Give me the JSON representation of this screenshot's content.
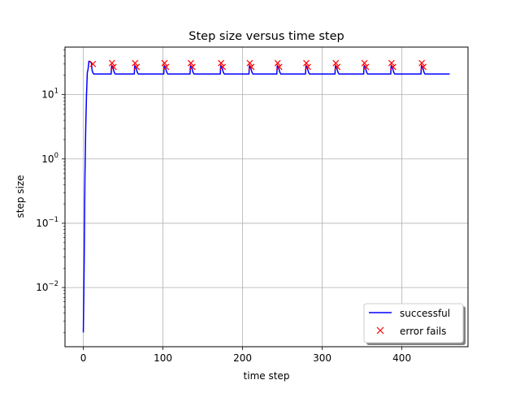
{
  "chart_data": {
    "type": "line",
    "title": "Step size versus time step",
    "xlabel": "time step",
    "ylabel": "step size",
    "xlim": [
      -23,
      483
    ],
    "ylim": [
      0.0012,
      55
    ],
    "yscale": "log",
    "grid": true,
    "legend_position": "lower-right",
    "x_ticks": [
      0,
      100,
      200,
      300,
      400
    ],
    "x_tick_labels": [
      "0",
      "100",
      "200",
      "300",
      "400"
    ],
    "y_ticks": [
      0.01,
      0.1,
      1,
      10
    ],
    "y_tick_labels": [
      {
        "base": "10",
        "exp": "−2"
      },
      {
        "base": "10",
        "exp": "−1"
      },
      {
        "base": "10",
        "exp": "0"
      },
      {
        "base": "10",
        "exp": "1"
      }
    ],
    "series": [
      {
        "name": "successful",
        "color": "#0000ff",
        "style": "line",
        "x": [
          0,
          1,
          2,
          3,
          4,
          5,
          6,
          7,
          8,
          9,
          10,
          11,
          12,
          13,
          14,
          20,
          30,
          35,
          35.5,
          36,
          37,
          38,
          39,
          40,
          45,
          55,
          64,
          64.5,
          65,
          66,
          67,
          68,
          69,
          75,
          90,
          101,
          101.5,
          102,
          103,
          104,
          105,
          106,
          112,
          125,
          134,
          134.5,
          135,
          136,
          137,
          138,
          139,
          145,
          160,
          172,
          172.5,
          173,
          174,
          175,
          176,
          177,
          183,
          198,
          208,
          208.5,
          209,
          210,
          211,
          212,
          213,
          219,
          233,
          243,
          243.5,
          244,
          245,
          246,
          247,
          248,
          254,
          268,
          279,
          279.5,
          280,
          281,
          282,
          283,
          284,
          290,
          305,
          316,
          316.5,
          317,
          318,
          319,
          320,
          321,
          327,
          342,
          352,
          352.5,
          353,
          354,
          355,
          356,
          357,
          363,
          377,
          386,
          386.5,
          387,
          388,
          389,
          390,
          391,
          397,
          413,
          424,
          424.5,
          425,
          426,
          427,
          428,
          429,
          435,
          450,
          460
        ],
        "y": [
          0.002,
          0.02,
          0.5,
          3,
          10,
          22,
          25,
          33,
          33,
          32,
          32,
          24,
          22,
          21,
          21,
          21,
          21,
          21,
          28,
          28,
          27,
          24,
          22,
          21,
          21,
          21,
          21,
          28,
          28,
          27,
          24,
          22,
          21,
          21,
          21,
          21,
          28,
          28,
          27,
          24,
          22,
          21,
          21,
          21,
          21,
          28,
          28,
          27,
          24,
          22,
          21,
          21,
          21,
          21,
          28,
          28,
          27,
          24,
          22,
          21,
          21,
          21,
          21,
          28,
          28,
          27,
          24,
          22,
          21,
          21,
          21,
          21,
          28,
          28,
          27,
          24,
          22,
          21,
          21,
          21,
          21,
          28,
          28,
          27,
          24,
          22,
          21,
          21,
          21,
          21,
          28,
          28,
          27,
          24,
          22,
          21,
          21,
          21,
          21,
          28,
          28,
          27,
          24,
          22,
          21,
          21,
          21,
          21,
          28,
          28,
          27,
          24,
          22,
          21,
          21,
          21,
          21,
          28,
          28,
          27,
          24,
          22,
          21,
          21,
          21,
          21
        ]
      },
      {
        "name": "error fails",
        "color": "#ff0000",
        "style": "x-marker",
        "x": [
          12,
          36,
          38,
          65,
          67,
          102,
          104,
          135,
          137,
          173,
          175,
          209,
          211,
          244,
          246,
          280,
          282,
          317,
          319,
          353,
          355,
          387,
          389,
          425,
          427
        ],
        "y": [
          30,
          31,
          27,
          31,
          27,
          31,
          27,
          31,
          27,
          31,
          27,
          31,
          27,
          31,
          27,
          31,
          27,
          31,
          27,
          31,
          27,
          31,
          27,
          31,
          27
        ]
      }
    ]
  }
}
